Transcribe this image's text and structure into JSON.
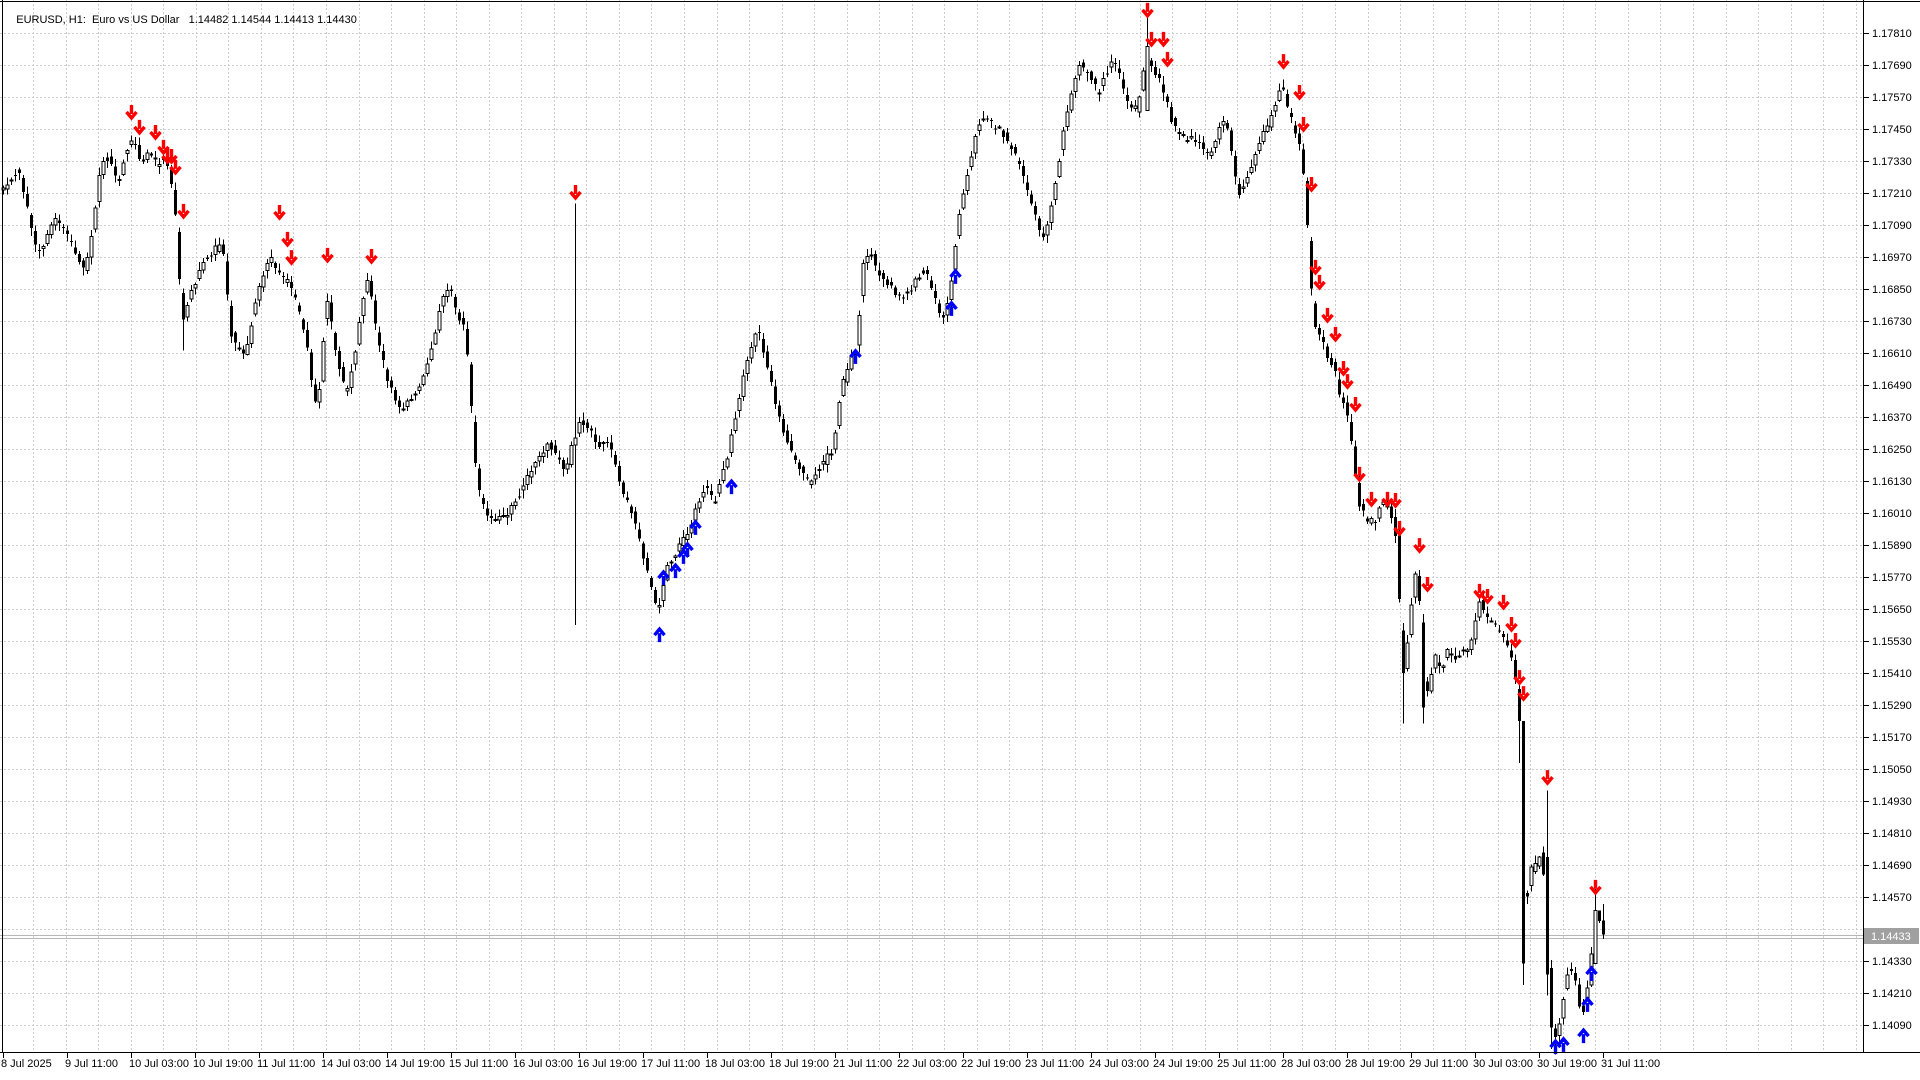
{
  "title": {
    "text": "EURUSD, H1:  Euro vs US Dollar   1.14482 1.14544 1.14413 1.14430"
  },
  "price_axis": {
    "current_price": "1.14433",
    "labels": [
      "1.17810",
      "1.17690",
      "1.17570",
      "1.17450",
      "1.17330",
      "1.17210",
      "1.17090",
      "1.16970",
      "1.16850",
      "1.16730",
      "1.16610",
      "1.16490",
      "1.16370",
      "1.16250",
      "1.16130",
      "1.16010",
      "1.15890",
      "1.15770",
      "1.15650",
      "1.15530",
      "1.15410",
      "1.15290",
      "1.15170",
      "1.15050",
      "1.14930",
      "1.14810",
      "1.14690",
      "1.14570",
      "1.14330",
      "1.14210",
      "1.14090"
    ]
  },
  "time_axis": {
    "labels": [
      "8 Jul 2025",
      "9 Jul 11:00",
      "10 Jul 03:00",
      "10 Jul 19:00",
      "11 Jul 11:00",
      "14 Jul 03:00",
      "14 Jul 19:00",
      "15 Jul 11:00",
      "16 Jul 03:00",
      "16 Jul 19:00",
      "17 Jul 11:00",
      "18 Jul 03:00",
      "18 Jul 19:00",
      "21 Jul 11:00",
      "22 Jul 03:00",
      "22 Jul 19:00",
      "23 Jul 11:00",
      "24 Jul 03:00",
      "24 Jul 19:00",
      "25 Jul 11:00",
      "28 Jul 03:00",
      "28 Jul 19:00",
      "29 Jul 11:00",
      "30 Jul 03:00",
      "30 Jul 19:00",
      "31 Jul 11:00"
    ]
  },
  "chart_data": {
    "type": "candlestick",
    "symbol": "EURUSD",
    "timeframe": "H1",
    "title_ohlc": {
      "open": "1.14482",
      "high": "1.14544",
      "low": "1.14413",
      "close": "1.14430"
    },
    "bid": 1.14433,
    "price_scale": {
      "top_label": 1.1781,
      "bottom_label": 1.1409,
      "step": 0.0012
    },
    "bars_per_time_label": 16,
    "bar_count": 401,
    "price_path": [
      [
        0,
        1.1722
      ],
      [
        2,
        1.1726
      ],
      [
        4,
        1.173
      ],
      [
        6,
        1.1718
      ],
      [
        9,
        1.1697
      ],
      [
        11,
        1.1703
      ],
      [
        13,
        1.1712
      ],
      [
        15,
        1.1708
      ],
      [
        17,
        1.1703
      ],
      [
        19,
        1.1697
      ],
      [
        21,
        1.1692
      ],
      [
        23,
        1.1712
      ],
      [
        25,
        1.1733
      ],
      [
        27,
        1.1735
      ],
      [
        29,
        1.1724
      ],
      [
        31,
        1.1737
      ],
      [
        33,
        1.1741
      ],
      [
        35,
        1.1732
      ],
      [
        37,
        1.1737
      ],
      [
        39,
        1.1731
      ],
      [
        40,
        1.1736
      ],
      [
        42,
        1.1727
      ],
      [
        43,
        1.172
      ],
      [
        44,
        1.17
      ],
      [
        45,
        1.1672
      ],
      [
        46,
        1.1676
      ],
      [
        47,
        1.1683
      ],
      [
        49,
        1.169
      ],
      [
        50,
        1.1695
      ],
      [
        52,
        1.1698
      ],
      [
        54,
        1.1701
      ],
      [
        55,
        1.1703
      ],
      [
        56,
        1.1692
      ],
      [
        57,
        1.167
      ],
      [
        59,
        1.1662
      ],
      [
        61,
        1.166
      ],
      [
        63,
        1.1678
      ],
      [
        65,
        1.1688
      ],
      [
        67,
        1.1698
      ],
      [
        68,
        1.1693
      ],
      [
        70,
        1.169
      ],
      [
        72,
        1.1686
      ],
      [
        74,
        1.1678
      ],
      [
        76,
        1.1668
      ],
      [
        78,
        1.1645
      ],
      [
        79,
        1.164
      ],
      [
        80,
        1.1656
      ],
      [
        81,
        1.1684
      ],
      [
        82,
        1.1676
      ],
      [
        83,
        1.1665
      ],
      [
        85,
        1.1652
      ],
      [
        86,
        1.1645
      ],
      [
        87,
        1.165
      ],
      [
        89,
        1.1668
      ],
      [
        91,
        1.1688
      ],
      [
        92,
        1.1686
      ],
      [
        94,
        1.1665
      ],
      [
        96,
        1.1654
      ],
      [
        97,
        1.1648
      ],
      [
        99,
        1.1642
      ],
      [
        100,
        1.164
      ],
      [
        102,
        1.1643
      ],
      [
        104,
        1.1647
      ],
      [
        106,
        1.1655
      ],
      [
        108,
        1.1666
      ],
      [
        110,
        1.168
      ],
      [
        112,
        1.1685
      ],
      [
        114,
        1.1675
      ],
      [
        116,
        1.1669
      ],
      [
        117,
        1.165
      ],
      [
        118,
        1.1625
      ],
      [
        119,
        1.1612
      ],
      [
        120,
        1.1605
      ],
      [
        121,
        1.16
      ],
      [
        123,
        1.1599
      ],
      [
        125,
        1.16
      ],
      [
        127,
        1.1602
      ],
      [
        129,
        1.1607
      ],
      [
        131,
        1.1613
      ],
      [
        133,
        1.162
      ],
      [
        135,
        1.1624
      ],
      [
        137,
        1.1627
      ],
      [
        139,
        1.1622
      ],
      [
        141,
        1.1616
      ],
      [
        143,
        1.1629
      ],
      [
        145,
        1.1636
      ],
      [
        147,
        1.1632
      ],
      [
        149,
        1.1627
      ],
      [
        152,
        1.1626
      ],
      [
        154,
        1.1616
      ],
      [
        156,
        1.1606
      ],
      [
        158,
        1.16
      ],
      [
        160,
        1.1586
      ],
      [
        162,
        1.1576
      ],
      [
        163,
        1.157
      ],
      [
        164,
        1.1563
      ],
      [
        166,
        1.158
      ],
      [
        168,
        1.1584
      ],
      [
        170,
        1.159
      ],
      [
        172,
        1.1594
      ],
      [
        173,
        1.16
      ],
      [
        175,
        1.1608
      ],
      [
        176,
        1.1612
      ],
      [
        178,
        1.1604
      ],
      [
        180,
        1.1614
      ],
      [
        182,
        1.1626
      ],
      [
        184,
        1.1642
      ],
      [
        186,
        1.1655
      ],
      [
        188,
        1.1666
      ],
      [
        189,
        1.167
      ],
      [
        190,
        1.1664
      ],
      [
        192,
        1.1652
      ],
      [
        194,
        1.1638
      ],
      [
        196,
        1.163
      ],
      [
        198,
        1.1622
      ],
      [
        200,
        1.1616
      ],
      [
        202,
        1.1612
      ],
      [
        204,
        1.1618
      ],
      [
        206,
        1.1621
      ],
      [
        208,
        1.1626
      ],
      [
        210,
        1.1648
      ],
      [
        212,
        1.1658
      ],
      [
        214,
        1.1664
      ],
      [
        215,
        1.1693
      ],
      [
        216,
        1.1696
      ],
      [
        217,
        1.1699
      ],
      [
        219,
        1.1692
      ],
      [
        221,
        1.1688
      ],
      [
        223,
        1.1684
      ],
      [
        225,
        1.1682
      ],
      [
        227,
        1.1684
      ],
      [
        229,
        1.169
      ],
      [
        231,
        1.1692
      ],
      [
        233,
        1.1684
      ],
      [
        235,
        1.1673
      ],
      [
        236,
        1.1676
      ],
      [
        237,
        1.1684
      ],
      [
        238,
        1.1696
      ],
      [
        239,
        1.1712
      ],
      [
        240,
        1.1718
      ],
      [
        241,
        1.1726
      ],
      [
        242,
        1.1732
      ],
      [
        243,
        1.174
      ],
      [
        245,
        1.175
      ],
      [
        247,
        1.1747
      ],
      [
        249,
        1.1745
      ],
      [
        251,
        1.1742
      ],
      [
        253,
        1.1736
      ],
      [
        255,
        1.1729
      ],
      [
        257,
        1.172
      ],
      [
        259,
        1.1708
      ],
      [
        260,
        1.1703
      ],
      [
        262,
        1.1712
      ],
      [
        264,
        1.173
      ],
      [
        266,
        1.175
      ],
      [
        268,
        1.176
      ],
      [
        269,
        1.177
      ],
      [
        271,
        1.1767
      ],
      [
        273,
        1.1762
      ],
      [
        274,
        1.1758
      ],
      [
        276,
        1.1766
      ],
      [
        278,
        1.1771
      ],
      [
        280,
        1.1762
      ],
      [
        282,
        1.1752
      ],
      [
        284,
        1.1753
      ],
      [
        286,
        1.1774
      ],
      [
        287,
        1.177
      ],
      [
        288,
        1.1767
      ],
      [
        290,
        1.1762
      ],
      [
        292,
        1.175
      ],
      [
        294,
        1.1743
      ],
      [
        296,
        1.1741
      ],
      [
        298,
        1.1742
      ],
      [
        300,
        1.1738
      ],
      [
        302,
        1.1736
      ],
      [
        304,
        1.1744
      ],
      [
        305,
        1.175
      ],
      [
        307,
        1.1742
      ],
      [
        309,
        1.172
      ],
      [
        311,
        1.1726
      ],
      [
        313,
        1.1734
      ],
      [
        315,
        1.1742
      ],
      [
        317,
        1.1748
      ],
      [
        319,
        1.1758
      ],
      [
        320,
        1.1762
      ],
      [
        321,
        1.1755
      ],
      [
        323,
        1.1746
      ],
      [
        325,
        1.1735
      ],
      [
        326,
        1.172
      ],
      [
        327,
        1.1693
      ],
      [
        328,
        1.1672
      ],
      [
        330,
        1.1666
      ],
      [
        331,
        1.1661
      ],
      [
        333,
        1.1656
      ],
      [
        334,
        1.1648
      ],
      [
        336,
        1.164
      ],
      [
        337,
        1.1634
      ],
      [
        338,
        1.1621
      ],
      [
        339,
        1.1605
      ],
      [
        341,
        1.1599
      ],
      [
        343,
        1.1597
      ],
      [
        345,
        1.1605
      ],
      [
        347,
        1.1603
      ],
      [
        349,
        1.1589
      ],
      [
        350,
        1.1537
      ],
      [
        351,
        1.1545
      ],
      [
        353,
        1.1576
      ],
      [
        354,
        1.158
      ],
      [
        355,
        1.155
      ],
      [
        356,
        1.1532
      ],
      [
        357,
        1.1536
      ],
      [
        358,
        1.1548
      ],
      [
        360,
        1.1541
      ],
      [
        361,
        1.1551
      ],
      [
        363,
        1.1545
      ],
      [
        365,
        1.155
      ],
      [
        366,
        1.1548
      ],
      [
        368,
        1.1556
      ],
      [
        369,
        1.1566
      ],
      [
        370,
        1.1568
      ],
      [
        371,
        1.1562
      ],
      [
        373,
        1.156
      ],
      [
        374,
        1.1557
      ],
      [
        376,
        1.1553
      ],
      [
        377,
        1.1549
      ],
      [
        378,
        1.1544
      ],
      [
        379,
        1.1528
      ],
      [
        380,
        1.1473
      ],
      [
        381,
        1.145
      ],
      [
        382,
        1.147
      ],
      [
        383,
        1.1466
      ],
      [
        384,
        1.1472
      ],
      [
        385,
        1.1475
      ],
      [
        386,
        1.1452
      ],
      [
        387,
        1.1415
      ],
      [
        388,
        1.1402
      ],
      [
        389,
        1.1406
      ],
      [
        390,
        1.1416
      ],
      [
        391,
        1.1425
      ],
      [
        392,
        1.1432
      ],
      [
        393,
        1.1428
      ],
      [
        394,
        1.142
      ],
      [
        395,
        1.1413
      ],
      [
        396,
        1.1419
      ],
      [
        397,
        1.1429
      ],
      [
        398,
        1.1447
      ],
      [
        399,
        1.1452
      ],
      [
        400,
        1.1445
      ]
    ],
    "overrides": {
      "45": {
        "l": 1.1662
      },
      "143": {
        "h": 1.1717,
        "l": 1.1559
      },
      "286": {
        "o": 1.1752,
        "c": 1.1776,
        "h": 1.1788
      },
      "350": {
        "l": 1.1522
      },
      "355": {
        "o": 1.156,
        "c": 1.1528,
        "l": 1.1522
      },
      "379": {
        "o": 1.1535,
        "c": 1.1523
      },
      "380": {
        "o": 1.1523,
        "c": 1.1432,
        "l": 1.1424
      },
      "386": {
        "o": 1.1472,
        "c": 1.1428,
        "h": 1.1497,
        "l": 1.142
      },
      "387": {
        "c": 1.1408,
        "l": 1.14
      },
      "388": {
        "l": 1.1398
      },
      "398": {
        "o": 1.1432,
        "c": 1.1452,
        "h": 1.146
      },
      "399": {
        "o": 1.1452,
        "c": 1.1448
      },
      "400": {
        "o": 1.14482,
        "h": 1.14544,
        "l": 1.14413,
        "c": 1.1443
      }
    },
    "signals": {
      "sell": [
        [
          32,
          1.1751
        ],
        [
          34,
          1.17454
        ],
        [
          38,
          1.17435
        ],
        [
          40,
          1.17379
        ],
        [
          41,
          1.17345
        ],
        [
          42,
          1.17345
        ],
        [
          43,
          1.17304
        ],
        [
          45,
          1.17139
        ],
        [
          69,
          1.17135
        ],
        [
          71,
          1.17034
        ],
        [
          72,
          1.16966
        ],
        [
          81,
          1.16974
        ],
        [
          92,
          1.1697
        ],
        [
          143,
          1.1721
        ],
        [
          286,
          1.17893
        ],
        [
          287,
          1.17784
        ],
        [
          290,
          1.17784
        ],
        [
          291,
          1.17709
        ],
        [
          320,
          1.17701
        ],
        [
          324,
          1.17585
        ],
        [
          325,
          1.17465
        ],
        [
          327,
          1.1724
        ],
        [
          328,
          1.16929
        ],
        [
          329,
          1.16873
        ],
        [
          331,
          1.16749
        ],
        [
          333,
          1.16678
        ],
        [
          335,
          1.1655
        ],
        [
          336,
          1.16501
        ],
        [
          338,
          1.16415
        ],
        [
          339,
          1.16153
        ],
        [
          342,
          1.16059
        ],
        [
          346,
          1.16059
        ],
        [
          348,
          1.16055
        ],
        [
          349,
          1.1595
        ],
        [
          354,
          1.15886
        ],
        [
          356,
          1.1574
        ],
        [
          369,
          1.15714
        ],
        [
          371,
          1.15695
        ],
        [
          375,
          1.15673
        ],
        [
          377,
          1.1559
        ],
        [
          378,
          1.1553
        ],
        [
          379,
          1.15391
        ],
        [
          380,
          1.15331
        ],
        [
          386,
          1.15016
        ],
        [
          398,
          1.14604
        ]
      ],
      "buy": [
        [
          164,
          1.15556
        ],
        [
          165,
          1.1577
        ],
        [
          168,
          1.15796
        ],
        [
          170,
          1.15849
        ],
        [
          171,
          1.15875
        ],
        [
          173,
          1.15958
        ],
        [
          182,
          1.16111
        ],
        [
          213,
          1.16599
        ],
        [
          237,
          1.16779
        ],
        [
          238,
          1.16899
        ],
        [
          388,
          1.14011
        ],
        [
          390,
          1.14019
        ],
        [
          395,
          1.14052
        ],
        [
          396,
          1.14169
        ],
        [
          397,
          1.14285
        ]
      ]
    },
    "colors": {
      "bull": "#ffffff",
      "bear": "#000000",
      "outline": "#000000",
      "sell_arrow": "#ff0000",
      "buy_arrow": "#0000ff",
      "grid": "#cdcdcd",
      "bid_line": "#b8b8b8",
      "price_tag_bg": "#a0a0a0",
      "price_tag_text": "#ffffff",
      "axis": "#000000"
    }
  }
}
